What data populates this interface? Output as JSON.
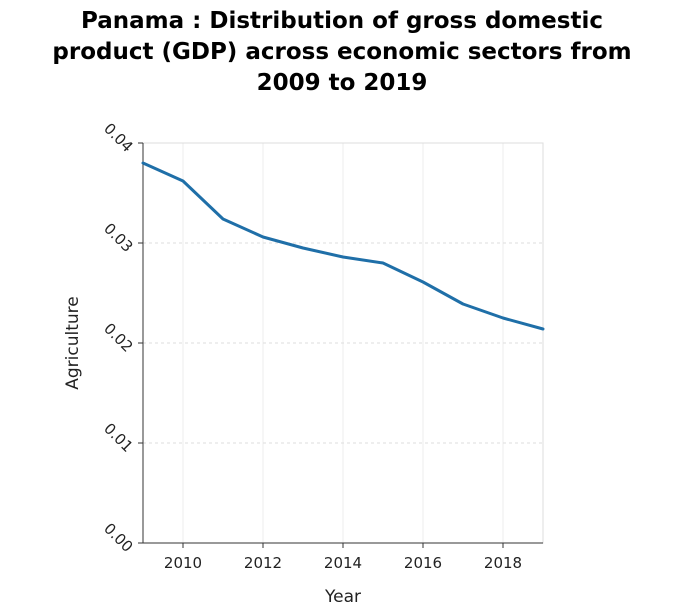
{
  "chart_data": {
    "type": "line",
    "title_lines": [
      "Panama : Distribution of gross domestic",
      "product (GDP) across economic sectors from",
      "2009 to 2019"
    ],
    "xlabel": "Year",
    "ylabel": "Agriculture",
    "xlim": [
      2009,
      2019
    ],
    "ylim": [
      0,
      0.04
    ],
    "x_ticks": [
      2010,
      2012,
      2014,
      2016,
      2018
    ],
    "x_tick_labels": [
      "2010",
      "2012",
      "2014",
      "2016",
      "2018"
    ],
    "y_ticks": [
      0,
      0.01,
      0.02,
      0.03,
      0.04
    ],
    "y_tick_labels": [
      "0.00",
      "0.01",
      "0.02",
      "0.03",
      "0.04"
    ],
    "grid": true,
    "series": [
      {
        "color": "#1f6fa8",
        "x": [
          2009,
          2010,
          2011,
          2012,
          2013,
          2014,
          2015,
          2016,
          2017,
          2018,
          2019
        ],
        "y": [
          0.038,
          0.0362,
          0.0324,
          0.0306,
          0.0295,
          0.0286,
          0.028,
          0.0261,
          0.0239,
          0.0225,
          0.0214
        ]
      }
    ]
  }
}
